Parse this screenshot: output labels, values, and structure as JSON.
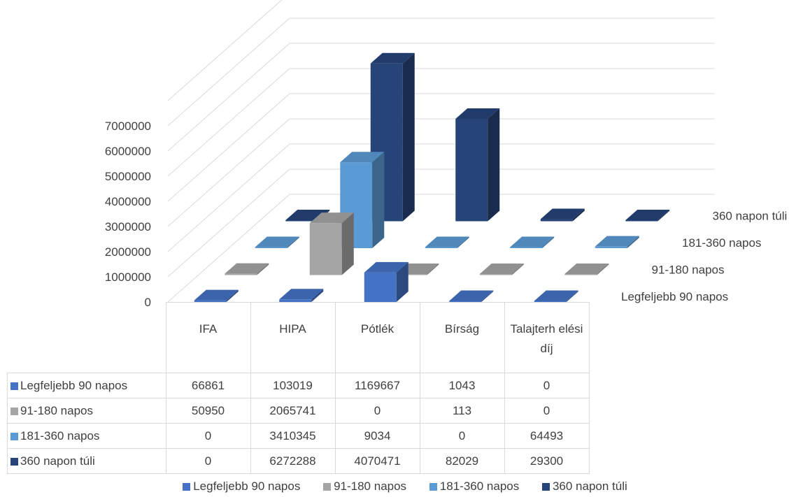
{
  "chart_data": {
    "type": "bar",
    "categories": [
      "IFA",
      "HIPA",
      "Pótlék",
      "Bírság",
      "Talajterh elési díj"
    ],
    "series": [
      {
        "name": "Legfeljebb 90 napos",
        "values": [
          66861,
          103019,
          1169667,
          1043,
          0
        ],
        "color": "#4472c4"
      },
      {
        "name": "91-180 napos",
        "values": [
          50950,
          2065741,
          0,
          113,
          0
        ],
        "color": "#a5a5a5"
      },
      {
        "name": "181-360 napos",
        "values": [
          0,
          3410345,
          9034,
          0,
          64493
        ],
        "color": "#5b9bd5"
      },
      {
        "name": "360 napon túli",
        "values": [
          0,
          6272288,
          4070471,
          82029,
          29300
        ],
        "color": "#264478"
      }
    ],
    "yticks": [
      "0",
      "1000000",
      "2000000",
      "3000000",
      "4000000",
      "5000000",
      "6000000",
      "7000000"
    ],
    "ylim": [
      0,
      7000000
    ],
    "legend": "bottom",
    "grid": true
  }
}
